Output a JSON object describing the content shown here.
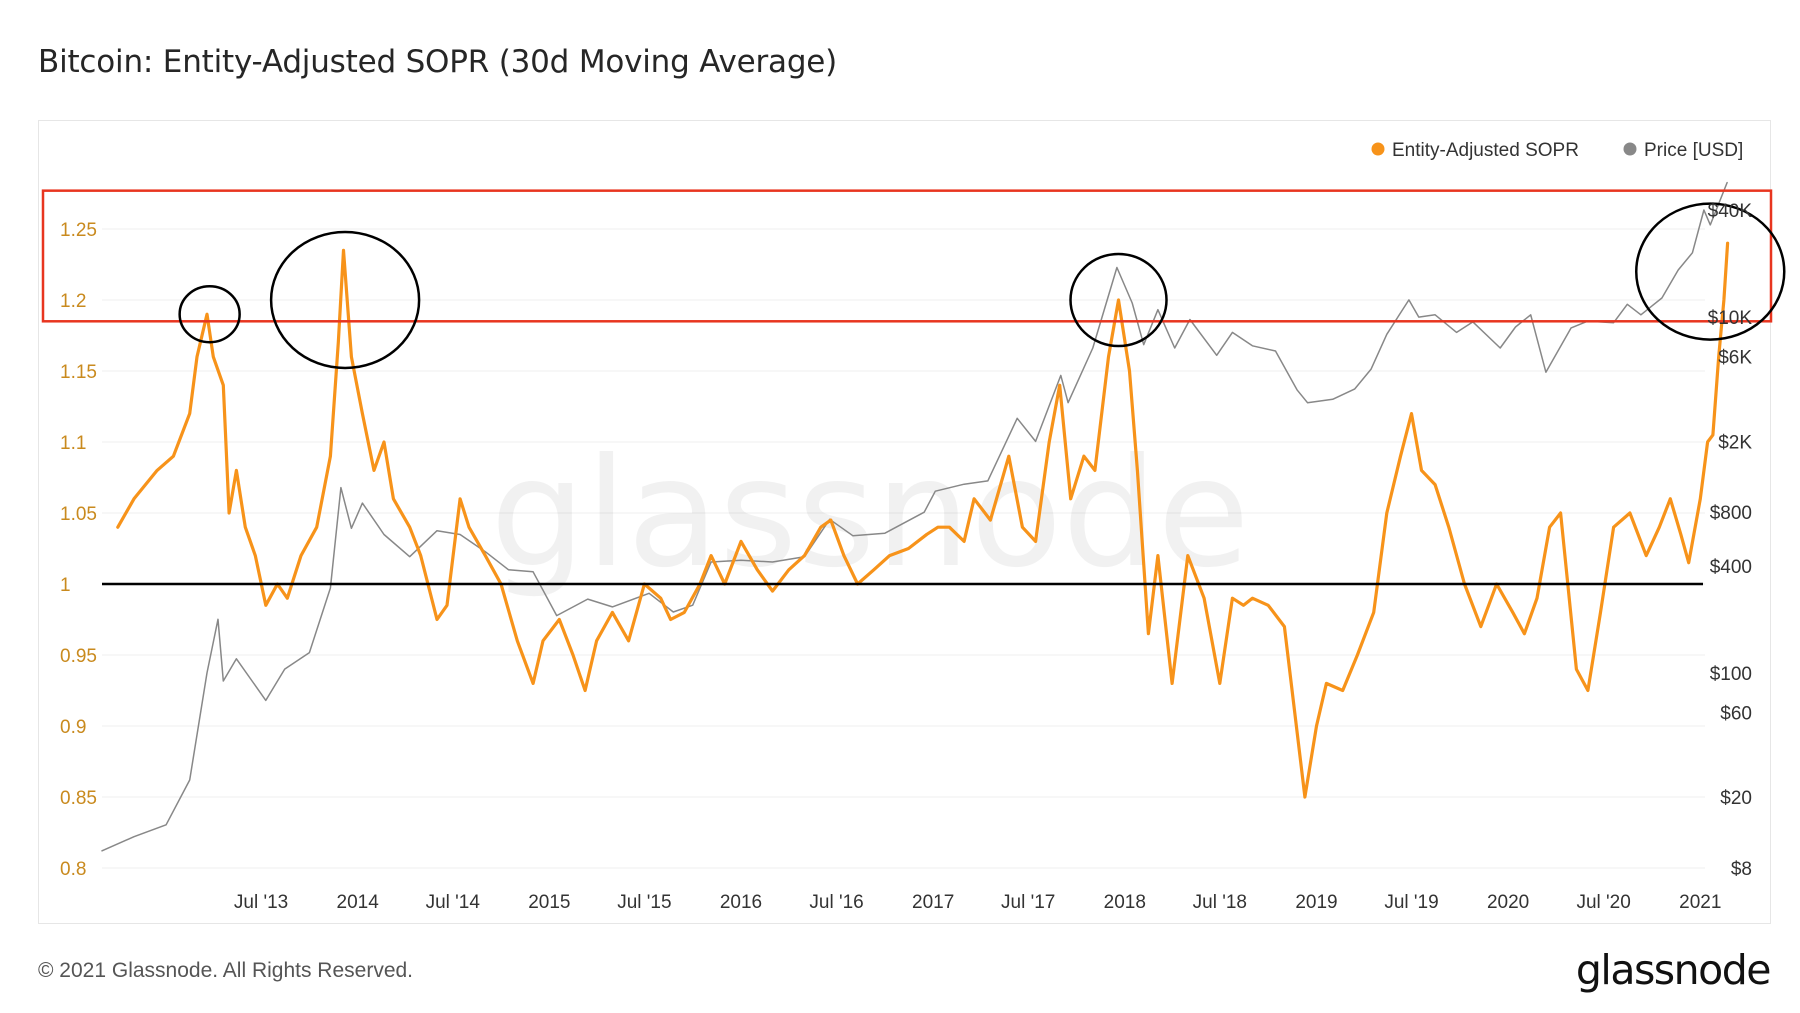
{
  "header": {
    "title": "Bitcoin: Entity-Adjusted SOPR (30d Moving Average)"
  },
  "footer": {
    "copyright": "© 2021 Glassnode. All Rights Reserved.",
    "logo": "glassnode"
  },
  "watermark": "glassnode",
  "colors": {
    "sopr": "#f7931a",
    "price": "#888888",
    "highlight_box": "#e8351f",
    "baseline": "#000000",
    "circles": "#000000"
  },
  "chart_data": {
    "type": "line",
    "title": "Bitcoin: Entity-Adjusted SOPR (30d Moving Average)",
    "x_range": [
      "2012-09-01",
      "2021-01-10"
    ],
    "x_ticks": [
      {
        "date": "2013-07-01",
        "label": "Jul '13"
      },
      {
        "date": "2014-01-01",
        "label": "2014"
      },
      {
        "date": "2014-07-01",
        "label": "Jul '14"
      },
      {
        "date": "2015-01-01",
        "label": "2015"
      },
      {
        "date": "2015-07-01",
        "label": "Jul '15"
      },
      {
        "date": "2016-01-01",
        "label": "2016"
      },
      {
        "date": "2016-07-01",
        "label": "Jul '16"
      },
      {
        "date": "2017-01-01",
        "label": "2017"
      },
      {
        "date": "2017-07-01",
        "label": "Jul '17"
      },
      {
        "date": "2018-01-01",
        "label": "2018"
      },
      {
        "date": "2018-07-01",
        "label": "Jul '18"
      },
      {
        "date": "2019-01-01",
        "label": "2019"
      },
      {
        "date": "2019-07-01",
        "label": "Jul '19"
      },
      {
        "date": "2020-01-01",
        "label": "2020"
      },
      {
        "date": "2020-07-01",
        "label": "Jul '20"
      },
      {
        "date": "2021-01-01",
        "label": "2021"
      }
    ],
    "y_left": {
      "range": [
        0.8,
        1.25
      ],
      "ticks": [
        {
          "value": 1.25,
          "label": "1.25"
        },
        {
          "value": 1.2,
          "label": "1.2"
        },
        {
          "value": 1.15,
          "label": "1.15"
        },
        {
          "value": 1.1,
          "label": "1.1"
        },
        {
          "value": 1.05,
          "label": "1.05"
        },
        {
          "value": 1.0,
          "label": "1"
        },
        {
          "value": 0.95,
          "label": "0.95"
        },
        {
          "value": 0.9,
          "label": "0.9"
        },
        {
          "value": 0.85,
          "label": "0.85"
        },
        {
          "value": 0.8,
          "label": "0.8"
        }
      ]
    },
    "y_right": {
      "scale": "log",
      "range": [
        8,
        40000
      ],
      "ticks": [
        {
          "value": 40000,
          "label": "$40K"
        },
        {
          "value": 10000,
          "label": "$10K"
        },
        {
          "value": 6000,
          "label": "$6K"
        },
        {
          "value": 2000,
          "label": "$2K"
        },
        {
          "value": 800,
          "label": "$800"
        },
        {
          "value": 400,
          "label": "$400"
        },
        {
          "value": 100,
          "label": "$100"
        },
        {
          "value": 60,
          "label": "$60"
        },
        {
          "value": 20,
          "label": "$20"
        },
        {
          "value": 8,
          "label": "$8"
        }
      ]
    },
    "legend": {
      "placement": "top-right"
    },
    "grid": true,
    "series": [
      {
        "name": "Entity-Adjusted SOPR",
        "axis": "left",
        "color": "#f7931a",
        "points": [
          [
            "2012-10-01",
            1.04
          ],
          [
            "2012-11-01",
            1.06
          ],
          [
            "2012-12-15",
            1.08
          ],
          [
            "2013-01-15",
            1.09
          ],
          [
            "2013-02-15",
            1.12
          ],
          [
            "2013-03-01",
            1.16
          ],
          [
            "2013-03-20",
            1.19
          ],
          [
            "2013-04-01",
            1.16
          ],
          [
            "2013-04-20",
            1.14
          ],
          [
            "2013-05-01",
            1.05
          ],
          [
            "2013-05-15",
            1.08
          ],
          [
            "2013-06-01",
            1.04
          ],
          [
            "2013-06-20",
            1.02
          ],
          [
            "2013-07-10",
            0.985
          ],
          [
            "2013-08-01",
            1.0
          ],
          [
            "2013-08-20",
            0.99
          ],
          [
            "2013-09-15",
            1.02
          ],
          [
            "2013-10-15",
            1.04
          ],
          [
            "2013-11-10",
            1.09
          ],
          [
            "2013-11-25",
            1.17
          ],
          [
            "2013-12-05",
            1.235
          ],
          [
            "2013-12-20",
            1.16
          ],
          [
            "2014-01-10",
            1.12
          ],
          [
            "2014-02-01",
            1.08
          ],
          [
            "2014-02-20",
            1.1
          ],
          [
            "2014-03-10",
            1.06
          ],
          [
            "2014-04-10",
            1.04
          ],
          [
            "2014-05-01",
            1.02
          ],
          [
            "2014-06-01",
            0.975
          ],
          [
            "2014-06-20",
            0.985
          ],
          [
            "2014-07-15",
            1.06
          ],
          [
            "2014-08-01",
            1.04
          ],
          [
            "2014-09-01",
            1.02
          ],
          [
            "2014-10-01",
            1.0
          ],
          [
            "2014-11-01",
            0.96
          ],
          [
            "2014-12-01",
            0.93
          ],
          [
            "2014-12-20",
            0.96
          ],
          [
            "2015-01-20",
            0.975
          ],
          [
            "2015-02-15",
            0.95
          ],
          [
            "2015-03-10",
            0.925
          ],
          [
            "2015-04-01",
            0.96
          ],
          [
            "2015-05-01",
            0.98
          ],
          [
            "2015-06-01",
            0.96
          ],
          [
            "2015-07-01",
            1.0
          ],
          [
            "2015-08-01",
            0.99
          ],
          [
            "2015-08-20",
            0.975
          ],
          [
            "2015-09-15",
            0.98
          ],
          [
            "2015-10-15",
            1.0
          ],
          [
            "2015-11-05",
            1.02
          ],
          [
            "2015-12-01",
            1.0
          ],
          [
            "2016-01-01",
            1.03
          ],
          [
            "2016-02-01",
            1.01
          ],
          [
            "2016-03-01",
            0.995
          ],
          [
            "2016-04-01",
            1.01
          ],
          [
            "2016-05-01",
            1.02
          ],
          [
            "2016-06-01",
            1.04
          ],
          [
            "2016-06-20",
            1.045
          ],
          [
            "2016-07-15",
            1.02
          ],
          [
            "2016-08-10",
            1.0
          ],
          [
            "2016-09-10",
            1.01
          ],
          [
            "2016-10-10",
            1.02
          ],
          [
            "2016-11-15",
            1.025
          ],
          [
            "2016-12-20",
            1.035
          ],
          [
            "2017-01-10",
            1.04
          ],
          [
            "2017-02-01",
            1.04
          ],
          [
            "2017-03-01",
            1.03
          ],
          [
            "2017-03-20",
            1.06
          ],
          [
            "2017-04-20",
            1.045
          ],
          [
            "2017-05-25",
            1.09
          ],
          [
            "2017-06-20",
            1.04
          ],
          [
            "2017-07-15",
            1.03
          ],
          [
            "2017-08-10",
            1.1
          ],
          [
            "2017-08-30",
            1.14
          ],
          [
            "2017-09-20",
            1.06
          ],
          [
            "2017-10-15",
            1.09
          ],
          [
            "2017-11-05",
            1.08
          ],
          [
            "2017-12-01",
            1.16
          ],
          [
            "2017-12-20",
            1.2
          ],
          [
            "2018-01-10",
            1.15
          ],
          [
            "2018-01-25",
            1.08
          ],
          [
            "2018-02-15",
            0.965
          ],
          [
            "2018-03-05",
            1.02
          ],
          [
            "2018-04-01",
            0.93
          ],
          [
            "2018-05-01",
            1.02
          ],
          [
            "2018-06-01",
            0.99
          ],
          [
            "2018-07-01",
            0.93
          ],
          [
            "2018-07-25",
            0.99
          ],
          [
            "2018-08-15",
            0.985
          ],
          [
            "2018-09-01",
            0.99
          ],
          [
            "2018-10-01",
            0.985
          ],
          [
            "2018-11-01",
            0.97
          ],
          [
            "2018-12-10",
            0.85
          ],
          [
            "2019-01-01",
            0.9
          ],
          [
            "2019-01-20",
            0.93
          ],
          [
            "2019-02-20",
            0.925
          ],
          [
            "2019-03-20",
            0.95
          ],
          [
            "2019-04-20",
            0.98
          ],
          [
            "2019-05-15",
            1.05
          ],
          [
            "2019-06-10",
            1.09
          ],
          [
            "2019-07-01",
            1.12
          ],
          [
            "2019-07-20",
            1.08
          ],
          [
            "2019-08-15",
            1.07
          ],
          [
            "2019-09-10",
            1.04
          ],
          [
            "2019-10-10",
            1.0
          ],
          [
            "2019-11-10",
            0.97
          ],
          [
            "2019-12-10",
            1.0
          ],
          [
            "2020-01-10",
            0.98
          ],
          [
            "2020-02-01",
            0.965
          ],
          [
            "2020-02-25",
            0.99
          ],
          [
            "2020-03-20",
            1.04
          ],
          [
            "2020-04-10",
            1.05
          ],
          [
            "2020-05-10",
            0.94
          ],
          [
            "2020-06-01",
            0.925
          ],
          [
            "2020-06-25",
            0.98
          ],
          [
            "2020-07-20",
            1.04
          ],
          [
            "2020-08-20",
            1.05
          ],
          [
            "2020-09-20",
            1.02
          ],
          [
            "2020-10-15",
            1.04
          ],
          [
            "2020-11-05",
            1.06
          ],
          [
            "2020-11-25",
            1.035
          ],
          [
            "2020-12-10",
            1.015
          ],
          [
            "2021-01-01",
            1.06
          ],
          [
            "2021-01-15",
            1.1
          ],
          [
            "2021-01-25",
            1.105
          ],
          [
            "2021-02-05",
            1.16
          ],
          [
            "2021-02-15",
            1.2
          ],
          [
            "2021-02-22",
            1.24
          ]
        ]
      },
      {
        "name": "Price [USD]",
        "axis": "right",
        "color": "#888888",
        "points": [
          [
            "2012-09-01",
            10
          ],
          [
            "2012-11-01",
            12
          ],
          [
            "2013-01-01",
            14
          ],
          [
            "2013-02-15",
            25
          ],
          [
            "2013-03-20",
            100
          ],
          [
            "2013-04-10",
            200
          ],
          [
            "2013-04-20",
            90
          ],
          [
            "2013-05-15",
            120
          ],
          [
            "2013-07-10",
            70
          ],
          [
            "2013-08-15",
            105
          ],
          [
            "2013-10-01",
            130
          ],
          [
            "2013-11-10",
            300
          ],
          [
            "2013-11-30",
            1100
          ],
          [
            "2013-12-20",
            650
          ],
          [
            "2014-01-10",
            900
          ],
          [
            "2014-02-20",
            600
          ],
          [
            "2014-04-10",
            450
          ],
          [
            "2014-06-01",
            630
          ],
          [
            "2014-07-15",
            600
          ],
          [
            "2014-09-01",
            480
          ],
          [
            "2014-10-15",
            380
          ],
          [
            "2014-12-01",
            370
          ],
          [
            "2015-01-15",
            210
          ],
          [
            "2015-03-15",
            260
          ],
          [
            "2015-05-01",
            235
          ],
          [
            "2015-07-10",
            280
          ],
          [
            "2015-08-25",
            220
          ],
          [
            "2015-10-01",
            240
          ],
          [
            "2015-11-05",
            420
          ],
          [
            "2016-01-01",
            430
          ],
          [
            "2016-03-01",
            420
          ],
          [
            "2016-05-01",
            450
          ],
          [
            "2016-06-18",
            730
          ],
          [
            "2016-08-01",
            590
          ],
          [
            "2016-10-01",
            610
          ],
          [
            "2016-12-15",
            800
          ],
          [
            "2017-01-05",
            1050
          ],
          [
            "2017-03-01",
            1150
          ],
          [
            "2017-04-15",
            1200
          ],
          [
            "2017-06-10",
            2700
          ],
          [
            "2017-07-15",
            2000
          ],
          [
            "2017-09-01",
            4700
          ],
          [
            "2017-09-15",
            3300
          ],
          [
            "2017-11-01",
            6700
          ],
          [
            "2017-12-17",
            19000
          ],
          [
            "2018-01-15",
            12000
          ],
          [
            "2018-02-06",
            7000
          ],
          [
            "2018-03-05",
            11000
          ],
          [
            "2018-04-06",
            6700
          ],
          [
            "2018-05-05",
            9700
          ],
          [
            "2018-06-25",
            6100
          ],
          [
            "2018-07-25",
            8200
          ],
          [
            "2018-09-01",
            6900
          ],
          [
            "2018-10-15",
            6450
          ],
          [
            "2018-11-25",
            3900
          ],
          [
            "2018-12-15",
            3300
          ],
          [
            "2019-02-01",
            3450
          ],
          [
            "2019-03-15",
            3950
          ],
          [
            "2019-04-15",
            5100
          ],
          [
            "2019-05-15",
            8000
          ],
          [
            "2019-06-26",
            12500
          ],
          [
            "2019-07-15",
            10000
          ],
          [
            "2019-08-15",
            10300
          ],
          [
            "2019-09-25",
            8200
          ],
          [
            "2019-10-26",
            9400
          ],
          [
            "2019-12-17",
            6700
          ],
          [
            "2020-01-15",
            8800
          ],
          [
            "2020-02-13",
            10300
          ],
          [
            "2020-03-13",
            4900
          ],
          [
            "2020-04-30",
            8700
          ],
          [
            "2020-06-01",
            9500
          ],
          [
            "2020-07-20",
            9300
          ],
          [
            "2020-08-15",
            11800
          ],
          [
            "2020-09-10",
            10300
          ],
          [
            "2020-10-20",
            12800
          ],
          [
            "2020-11-20",
            18400
          ],
          [
            "2020-12-17",
            23000
          ],
          [
            "2021-01-08",
            40000
          ],
          [
            "2021-01-20",
            33000
          ],
          [
            "2021-02-21",
            57000
          ]
        ]
      }
    ],
    "annotations": {
      "highlight_box": {
        "y_left_range": [
          1.185,
          1.277
        ],
        "color": "#e8351f"
      },
      "baseline": {
        "y_left": 1.0,
        "color": "#000000"
      },
      "circles": [
        {
          "date": "2013-03-25",
          "value": 1.19
        },
        {
          "date": "2013-12-08",
          "value": 1.2
        },
        {
          "date": "2017-12-20",
          "value": 1.2
        },
        {
          "date": "2021-01-20",
          "value": 1.22
        }
      ]
    }
  },
  "legend_items": [
    {
      "label": "Entity-Adjusted SOPR",
      "color": "#f7931a"
    },
    {
      "label": "Price [USD]",
      "color": "#888888"
    }
  ]
}
